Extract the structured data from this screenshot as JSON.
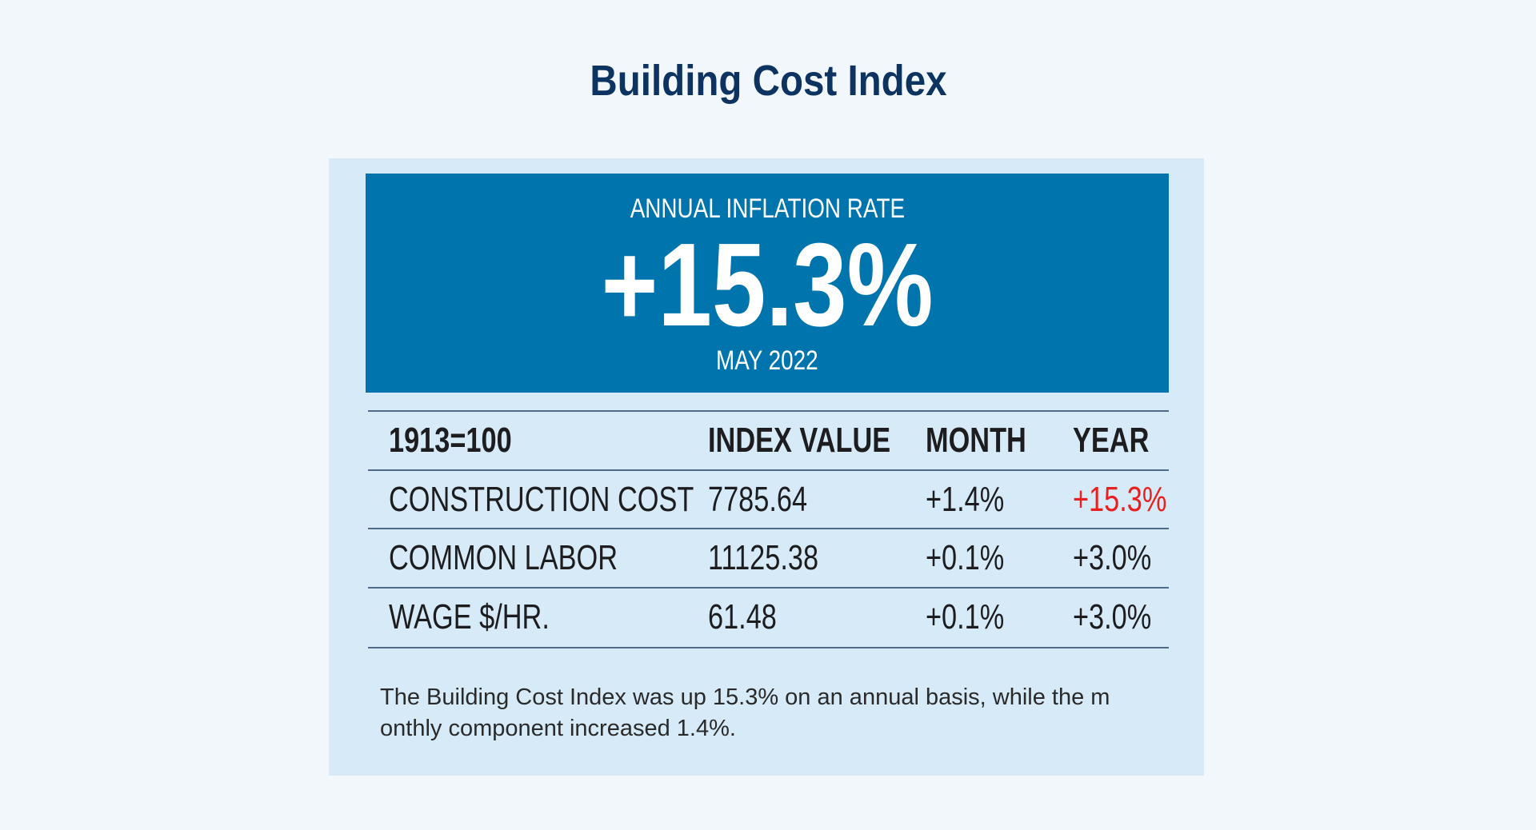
{
  "title": "Building Cost Index",
  "hero": {
    "label": "ANNUAL INFLATION RATE",
    "value": "+15.3%",
    "date": "MAY 2022"
  },
  "table": {
    "headers": [
      "1913=100",
      "INDEX VALUE",
      "MONTH",
      "YEAR"
    ],
    "rows": [
      [
        "CONSTRUCTION COST",
        "7785.64",
        "+1.4%",
        "+15.3%"
      ],
      [
        "COMMON LABOR",
        "11125.38",
        "+0.1%",
        "+3.0%"
      ],
      [
        "WAGE $/HR.",
        "61.48",
        "+0.1%",
        "+3.0%"
      ]
    ]
  },
  "caption": "The Building Cost Index was up 15.3% on an annual basis, while the m onthly component increased 1.4%.",
  "colors": {
    "accent": "#0074ad",
    "title": "#0d3460",
    "highlight": "#e8201f",
    "panel": "#d6eaf8"
  }
}
